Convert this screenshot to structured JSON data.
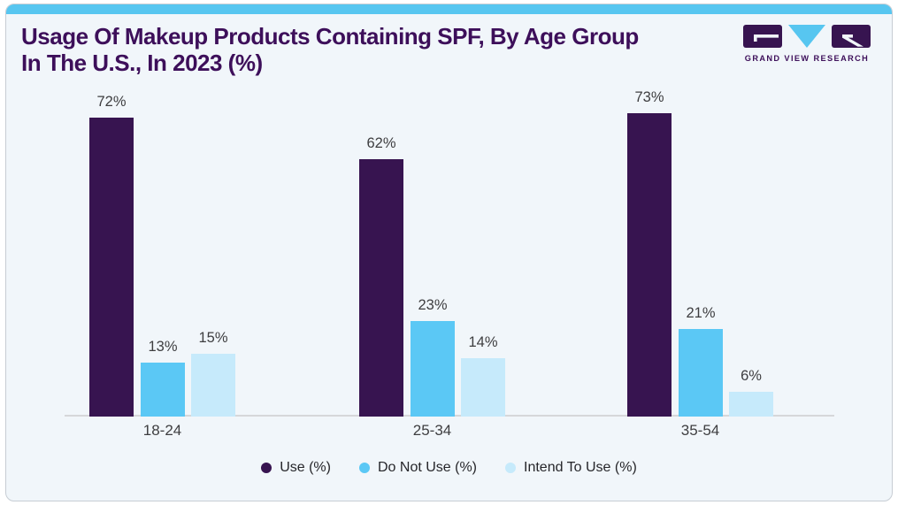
{
  "header": {
    "title_line1": "Usage Of Makeup Products Containing SPF, By Age Group",
    "title_line2": "In The U.S., In 2023 (%)",
    "logo_text": "GRAND VIEW RESEARCH"
  },
  "colors": {
    "accent_cyan": "#57c6f0",
    "card_bg": "#f1f6fa",
    "card_border": "#c7cdd4",
    "title_purple": "#3d0f5a",
    "bar_use": "#371450",
    "bar_do_not_use": "#5bc8f5",
    "bar_intend_to_use": "#c6eafb",
    "value_label_gray": "#3e3e40",
    "axis_line_gray": "#d6d7d9"
  },
  "chart_data": {
    "type": "bar",
    "title": "Usage Of Makeup Products Containing SPF, By Age Group In The U.S., In 2023 (%)",
    "categories": [
      "18-24",
      "25-34",
      "35-54"
    ],
    "series": [
      {
        "name": "Use (%)",
        "color": "#371450",
        "values": [
          72,
          62,
          73
        ]
      },
      {
        "name": "Do Not Use (%)",
        "color": "#5bc8f5",
        "values": [
          13,
          23,
          21
        ]
      },
      {
        "name": "Intend To Use (%)",
        "color": "#c6eafb",
        "values": [
          15,
          14,
          6
        ]
      }
    ],
    "value_suffix": "%",
    "data_labels": true,
    "xlabel": "",
    "ylabel": "",
    "ylim": [
      0,
      80
    ],
    "grid": false,
    "legend_position": "bottom"
  }
}
